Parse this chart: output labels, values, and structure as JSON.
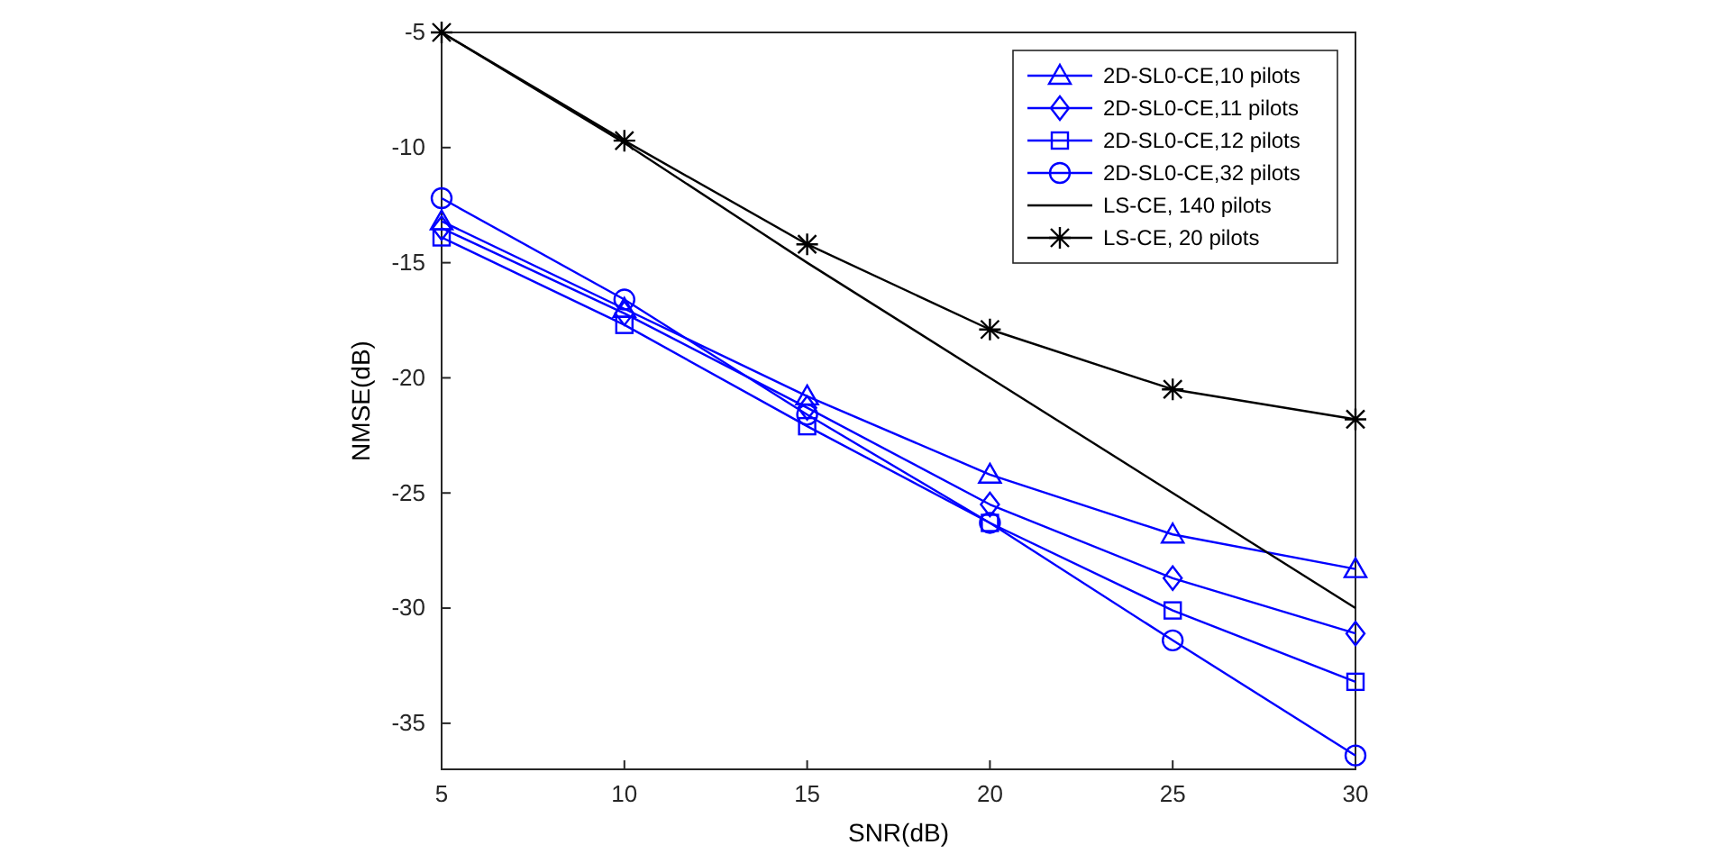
{
  "chart_data": {
    "type": "line",
    "xlabel": "SNR(dB)",
    "ylabel": "NMSE(dB)",
    "x": [
      5,
      10,
      15,
      20,
      25,
      30
    ],
    "xlim": [
      5,
      30
    ],
    "xticks": [
      5,
      10,
      15,
      20,
      25,
      30
    ],
    "ylim": [
      -37,
      -5
    ],
    "yticks": [
      -35,
      -30,
      -25,
      -20,
      -15,
      -10,
      -5
    ],
    "grid": false,
    "legend": "top right",
    "line_style": "solid",
    "series": [
      {
        "name": "2D-SL0-CE,10 pilots",
        "color": "#0000ff",
        "marker": "triangle",
        "values": [
          -13.2,
          -17,
          -20.8,
          -24.2,
          -26.8,
          -28.3
        ]
      },
      {
        "name": "2D-SL0-CE,11 pilots",
        "color": "#0000ff",
        "marker": "diamond",
        "values": [
          -13.5,
          -17.2,
          -21.3,
          -25.5,
          -28.7,
          -31.1
        ]
      },
      {
        "name": "2D-SL0-CE,12 pilots",
        "color": "#0000ff",
        "marker": "square",
        "values": [
          -13.9,
          -17.7,
          -22.1,
          -26.3,
          -30.1,
          -33.2
        ]
      },
      {
        "name": "2D-SL0-CE,32 pilots",
        "color": "#0000ff",
        "marker": "circle",
        "values": [
          -12.2,
          -16.6,
          -21.6,
          -26.3,
          -31.4,
          -36.4
        ]
      },
      {
        "name": "LS-CE, 140 pilots",
        "color": "#000000",
        "marker": "none",
        "values": [
          -5,
          -9.8,
          -15,
          -20,
          -25,
          -30
        ]
      },
      {
        "name": "LS-CE, 20 pilots",
        "color": "#000000",
        "marker": "cross",
        "values": [
          -5,
          -9.7,
          -14.2,
          -17.9,
          -20.5,
          -21.8
        ]
      }
    ]
  }
}
